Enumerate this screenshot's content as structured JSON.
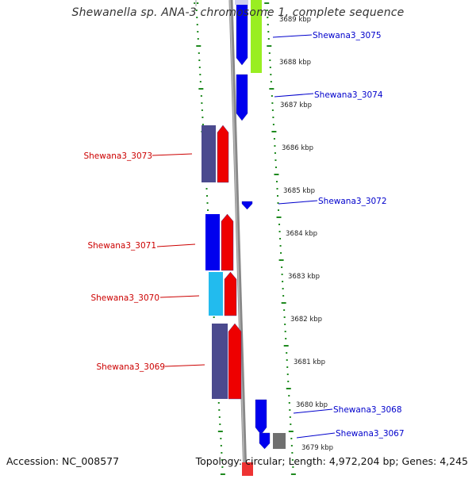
{
  "title": "Shewanella sp. ANA-3 chromosome 1, complete sequence",
  "footer": {
    "accession": "Accession: NC_008577",
    "topology": "Topology: circular; Length: 4,972,204 bp; Genes: 4,245"
  },
  "scale": {
    "unit": "kbp",
    "ticks": [
      {
        "kbp": 3689,
        "label": "3689 kbp"
      },
      {
        "kbp": 3688,
        "label": "3688 kbp"
      },
      {
        "kbp": 3687,
        "label": "3687 kbp"
      },
      {
        "kbp": 3686,
        "label": "3686 kbp"
      },
      {
        "kbp": 3685,
        "label": "3685 kbp"
      },
      {
        "kbp": 3684,
        "label": "3684 kbp"
      },
      {
        "kbp": 3683,
        "label": "3683 kbp"
      },
      {
        "kbp": 3682,
        "label": "3682 kbp"
      },
      {
        "kbp": 3681,
        "label": "3681 kbp"
      },
      {
        "kbp": 3680,
        "label": "3680 kbp"
      },
      {
        "kbp": 3679,
        "label": "3679 kbp"
      }
    ]
  },
  "genes": [
    {
      "label": "Shewana3_3075",
      "strand": "forward",
      "color": "#0000ee"
    },
    {
      "label": "Shewana3_3074",
      "strand": "forward",
      "color": "#0000ee"
    },
    {
      "label": "Shewana3_3073",
      "strand": "reverse",
      "color": "#ee0000"
    },
    {
      "label": "Shewana3_3072",
      "strand": "forward",
      "color": "#0000ee"
    },
    {
      "label": "Shewana3_3071",
      "strand": "reverse",
      "color": "#ee0000"
    },
    {
      "label": "Shewana3_3070",
      "strand": "reverse",
      "color": "#ee0000"
    },
    {
      "label": "Shewana3_3069",
      "strand": "reverse",
      "color": "#ee0000"
    },
    {
      "label": "Shewana3_3068",
      "strand": "forward",
      "color": "#0000ee"
    },
    {
      "label": "Shewana3_3067",
      "strand": "forward",
      "color": "#0000ee"
    }
  ],
  "colors": {
    "forward_label": "#0000cc",
    "reverse_label": "#cc0000",
    "backbone": "#888888",
    "ticks": "#1f8a1f",
    "cog_purple": "#4b4a8e",
    "cog_cyan": "#22bbee",
    "cog_green": "#99ee22",
    "cog_gray": "#707070"
  }
}
